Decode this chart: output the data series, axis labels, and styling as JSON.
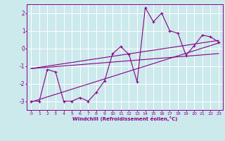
{
  "title": "",
  "xlabel": "Windchill (Refroidissement éolien,°C)",
  "xlim": [
    -0.5,
    23.5
  ],
  "ylim": [
    -3.5,
    2.5
  ],
  "yticks": [
    -3,
    -2,
    -1,
    0,
    1,
    2
  ],
  "xticks": [
    0,
    1,
    2,
    3,
    4,
    5,
    6,
    7,
    8,
    9,
    10,
    11,
    12,
    13,
    14,
    15,
    16,
    17,
    18,
    19,
    20,
    21,
    22,
    23
  ],
  "background_color": "#cce9ec",
  "grid_color": "#ffffff",
  "line_color": "#880088",
  "line1_x": [
    0,
    1,
    2,
    3,
    4,
    5,
    6,
    7,
    8,
    9,
    10,
    11,
    12,
    13,
    14,
    15,
    16,
    17,
    18,
    19,
    20,
    21,
    22,
    23
  ],
  "line1_y": [
    -3.0,
    -3.0,
    -1.2,
    -1.35,
    -3.0,
    -3.0,
    -2.8,
    -3.0,
    -2.5,
    -1.85,
    -0.3,
    0.1,
    -0.35,
    -1.9,
    2.3,
    1.5,
    2.0,
    1.0,
    0.85,
    -0.4,
    0.15,
    0.75,
    0.65,
    0.35
  ],
  "trend1_x": [
    0,
    23
  ],
  "trend1_y": [
    -1.15,
    0.45
  ],
  "trend2_x": [
    0,
    23
  ],
  "trend2_y": [
    -3.05,
    0.3
  ],
  "trend3_x": [
    0,
    23
  ],
  "trend3_y": [
    -1.15,
    -0.3
  ]
}
